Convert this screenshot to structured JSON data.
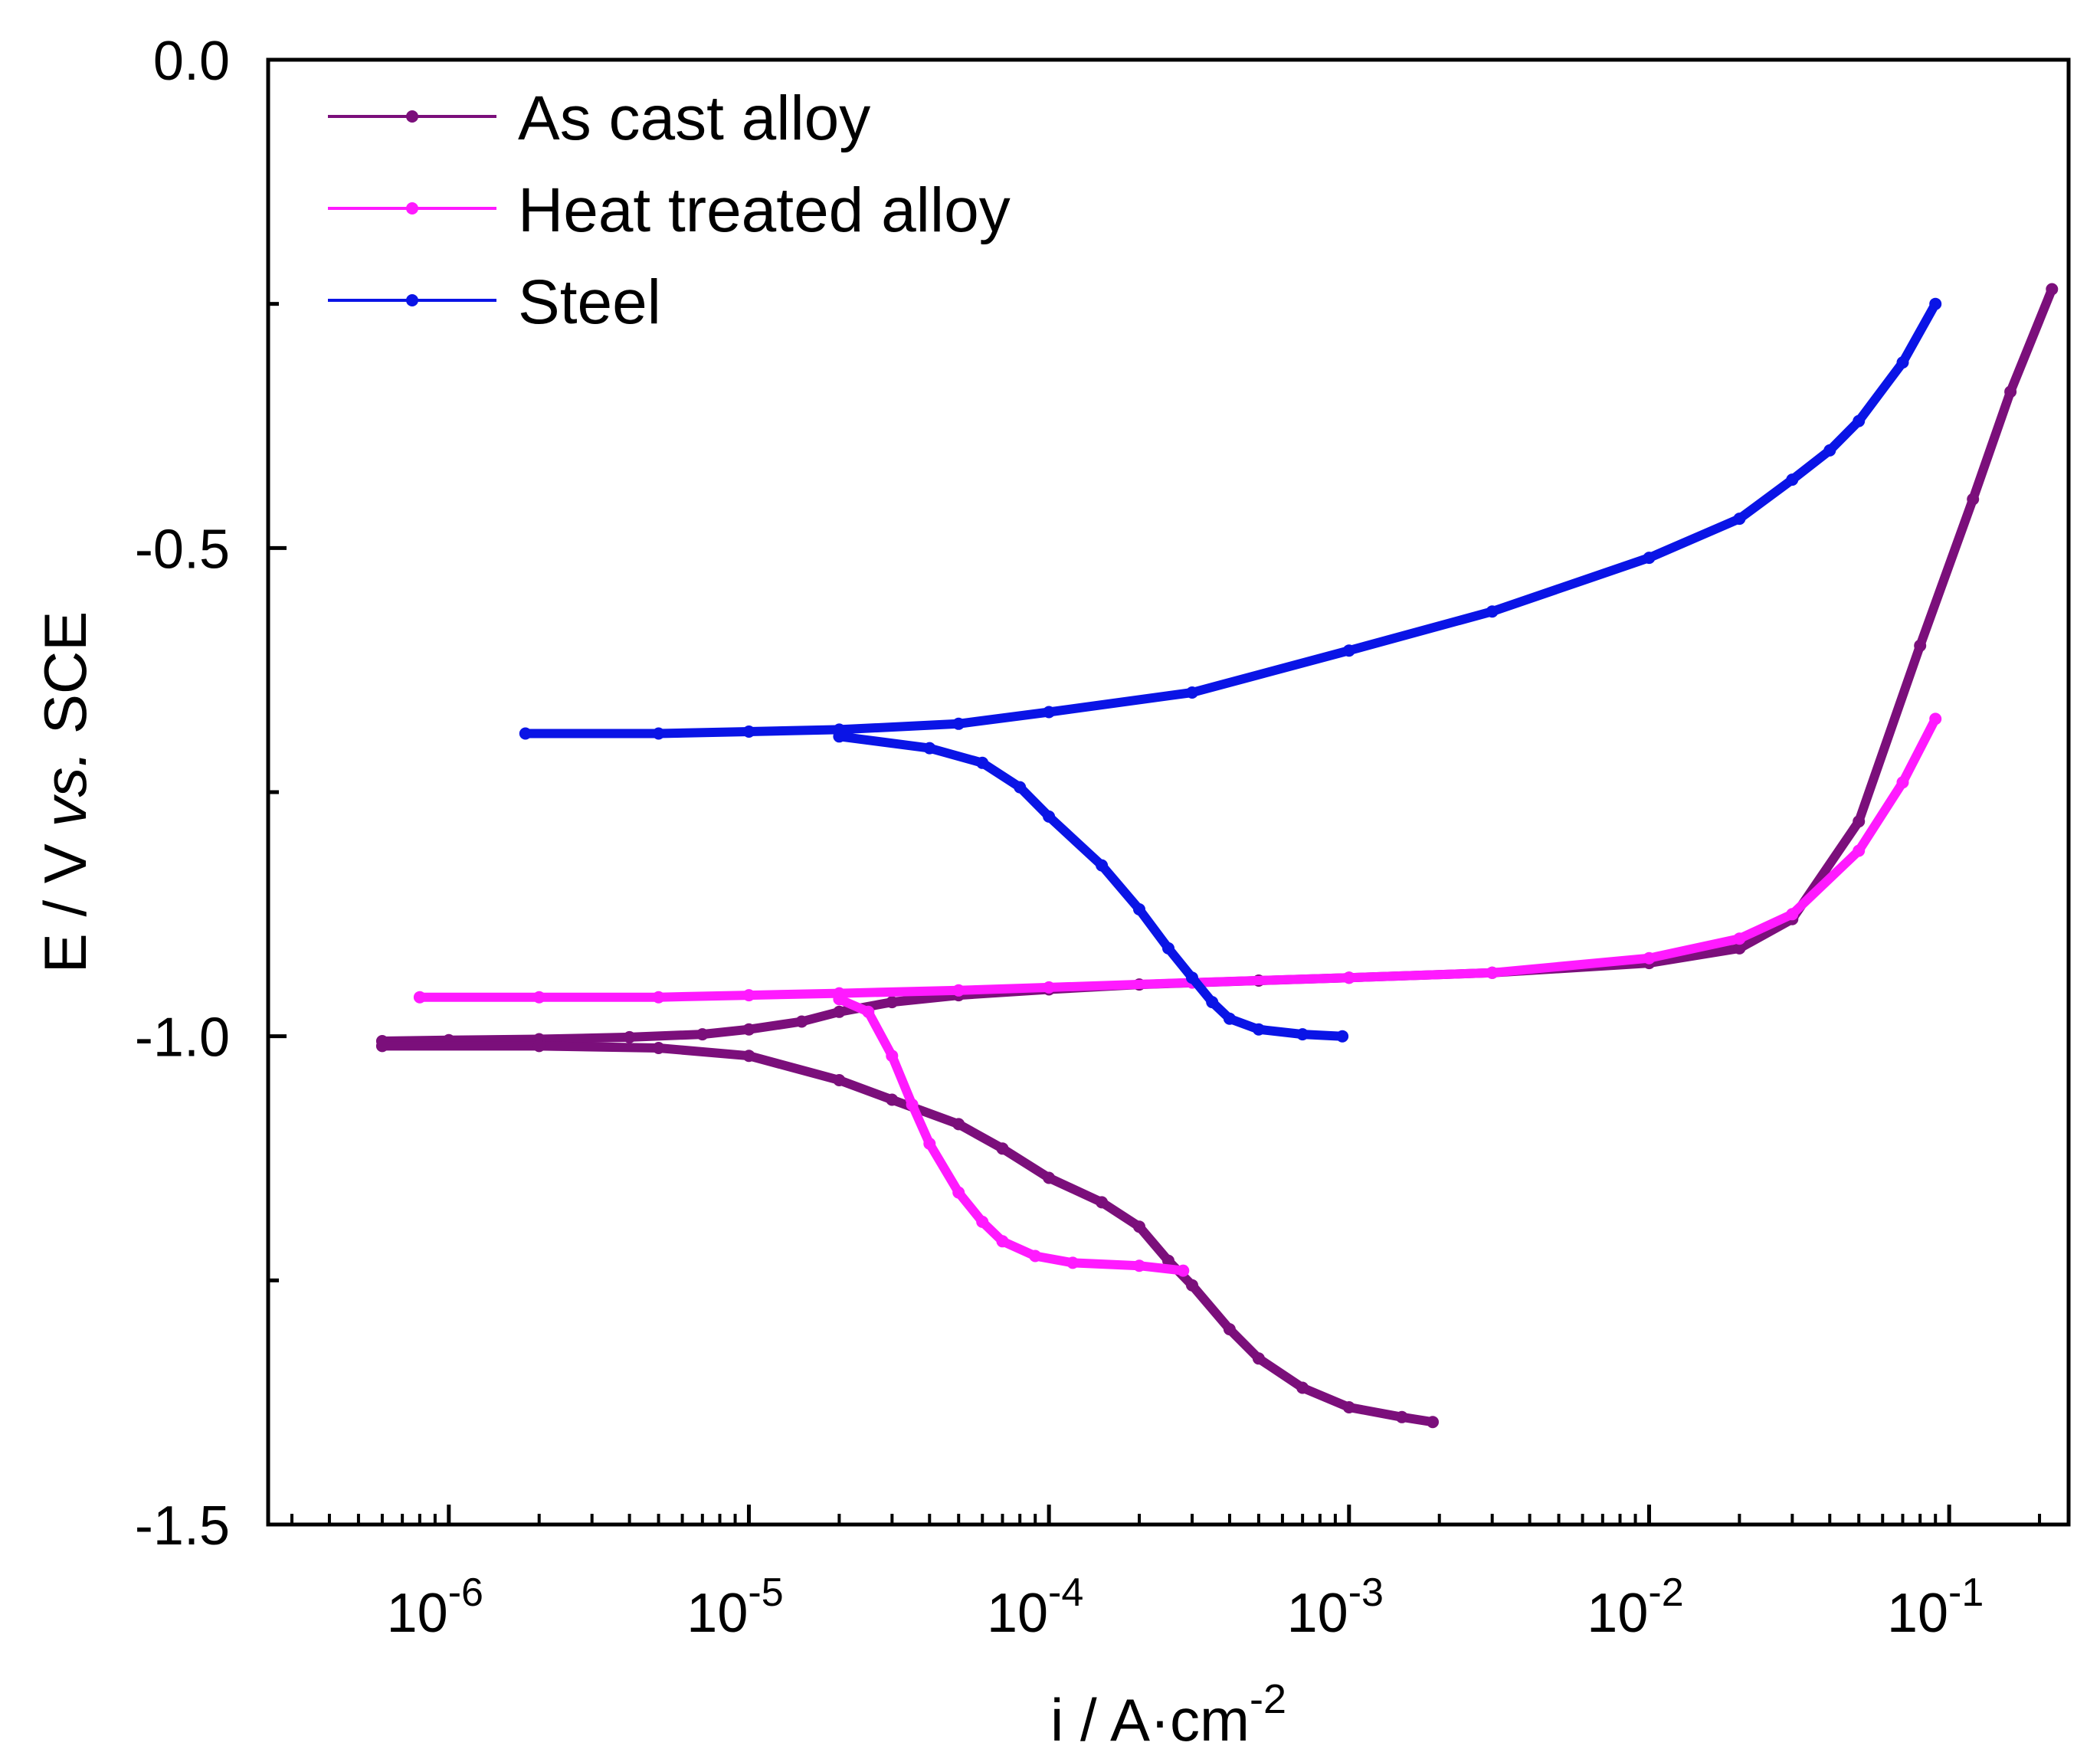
{
  "chart_data": {
    "type": "line",
    "title": "",
    "xlabel": "i / A·cm",
    "xlabel_superscript": "-2",
    "ylabel_parts": [
      "E / V ",
      "vs.",
      " SCE"
    ],
    "x_scale": "log",
    "xlim": [
      2.5e-07,
      0.25
    ],
    "ylim": [
      -1.5,
      0.0
    ],
    "x_ticks": [
      {
        "value": 1e-06,
        "base": "10",
        "exp": "-6"
      },
      {
        "value": 1e-05,
        "base": "10",
        "exp": "-5"
      },
      {
        "value": 0.0001,
        "base": "10",
        "exp": "-4"
      },
      {
        "value": 0.001,
        "base": "10",
        "exp": "-3"
      },
      {
        "value": 0.01,
        "base": "10",
        "exp": "-2"
      },
      {
        "value": 0.1,
        "base": "10",
        "exp": "-1"
      }
    ],
    "y_ticks": [
      {
        "value": 0.0,
        "label": "0.0"
      },
      {
        "value": -0.5,
        "label": "-0.5"
      },
      {
        "value": -1.0,
        "label": "-1.0"
      },
      {
        "value": -1.5,
        "label": "-1.5"
      }
    ],
    "y_minor_ticks": [
      -0.25,
      -0.75,
      -1.25
    ],
    "grid": false,
    "legend_position": "top-left",
    "series": [
      {
        "name": "As cast alloy",
        "color": "#7b0f7b",
        "segments": [
          [
            [
              6e-07,
              -1.005
            ],
            [
              1e-06,
              -1.004
            ],
            [
              2e-06,
              -1.003
            ],
            [
              4e-06,
              -1.001
            ],
            [
              7e-06,
              -0.998
            ],
            [
              1e-05,
              -0.993
            ],
            [
              1.5e-05,
              -0.985
            ],
            [
              2e-05,
              -0.975
            ],
            [
              3e-05,
              -0.965
            ],
            [
              5e-05,
              -0.958
            ],
            [
              0.0001,
              -0.952
            ],
            [
              0.0002,
              -0.947
            ],
            [
              0.0005,
              -0.943
            ],
            [
              0.001,
              -0.94
            ],
            [
              0.003,
              -0.935
            ],
            [
              0.01,
              -0.925
            ],
            [
              0.02,
              -0.91
            ],
            [
              0.03,
              -0.88
            ],
            [
              0.05,
              -0.78
            ],
            [
              0.08,
              -0.6
            ],
            [
              0.12,
              -0.45
            ],
            [
              0.16,
              -0.34
            ],
            [
              0.22,
              -0.235
            ]
          ],
          [
            [
              6e-07,
              -1.01
            ],
            [
              2e-06,
              -1.01
            ],
            [
              5e-06,
              -1.012
            ],
            [
              1e-05,
              -1.02
            ],
            [
              2e-05,
              -1.045
            ],
            [
              3e-05,
              -1.065
            ],
            [
              5e-05,
              -1.09
            ],
            [
              7e-05,
              -1.115
            ],
            [
              0.0001,
              -1.145
            ],
            [
              0.00015,
              -1.17
            ],
            [
              0.0002,
              -1.195
            ],
            [
              0.00025,
              -1.23
            ],
            [
              0.0003,
              -1.255
            ],
            [
              0.0004,
              -1.3
            ],
            [
              0.0005,
              -1.33
            ],
            [
              0.0007,
              -1.36
            ],
            [
              0.001,
              -1.38
            ],
            [
              0.0015,
              -1.39
            ],
            [
              0.0019,
              -1.395
            ]
          ]
        ]
      },
      {
        "name": "Heat treated alloy",
        "color": "#ff1aff",
        "segments": [
          [
            [
              8e-07,
              -0.96
            ],
            [
              2e-06,
              -0.96
            ],
            [
              5e-06,
              -0.96
            ],
            [
              1e-05,
              -0.958
            ],
            [
              2e-05,
              -0.956
            ],
            [
              5e-05,
              -0.953
            ],
            [
              0.0001,
              -0.95
            ],
            [
              0.0003,
              -0.945
            ],
            [
              0.001,
              -0.94
            ],
            [
              0.003,
              -0.935
            ],
            [
              0.01,
              -0.92
            ],
            [
              0.02,
              -0.9
            ],
            [
              0.03,
              -0.875
            ],
            [
              0.05,
              -0.81
            ],
            [
              0.07,
              -0.74
            ],
            [
              0.09,
              -0.675
            ]
          ],
          [
            [
              2e-05,
              -0.962
            ],
            [
              2.5e-05,
              -0.975
            ],
            [
              3e-05,
              -1.02
            ],
            [
              3.5e-05,
              -1.07
            ],
            [
              4e-05,
              -1.11
            ],
            [
              5e-05,
              -1.16
            ],
            [
              6e-05,
              -1.19
            ],
            [
              7e-05,
              -1.21
            ],
            [
              9e-05,
              -1.225
            ],
            [
              0.00012,
              -1.232
            ],
            [
              0.0002,
              -1.235
            ],
            [
              0.00028,
              -1.24
            ]
          ]
        ]
      },
      {
        "name": "Steel",
        "color": "#0a14e6",
        "segments": [
          [
            [
              1.8e-06,
              -0.69
            ],
            [
              5e-06,
              -0.69
            ],
            [
              1e-05,
              -0.688
            ],
            [
              2e-05,
              -0.686
            ],
            [
              5e-05,
              -0.68
            ],
            [
              0.0001,
              -0.668
            ],
            [
              0.0003,
              -0.648
            ],
            [
              0.001,
              -0.605
            ],
            [
              0.003,
              -0.565
            ],
            [
              0.01,
              -0.51
            ],
            [
              0.02,
              -0.47
            ],
            [
              0.03,
              -0.43
            ],
            [
              0.04,
              -0.4
            ],
            [
              0.05,
              -0.37
            ],
            [
              0.07,
              -0.31
            ],
            [
              0.09,
              -0.25
            ]
          ],
          [
            [
              2e-05,
              -0.693
            ],
            [
              4e-05,
              -0.705
            ],
            [
              6e-05,
              -0.72
            ],
            [
              8e-05,
              -0.745
            ],
            [
              0.0001,
              -0.775
            ],
            [
              0.00015,
              -0.825
            ],
            [
              0.0002,
              -0.87
            ],
            [
              0.00025,
              -0.91
            ],
            [
              0.0003,
              -0.94
            ],
            [
              0.00035,
              -0.965
            ],
            [
              0.0004,
              -0.982
            ],
            [
              0.0005,
              -0.993
            ],
            [
              0.0007,
              -0.998
            ],
            [
              0.00095,
              -1.0
            ]
          ]
        ]
      }
    ]
  }
}
